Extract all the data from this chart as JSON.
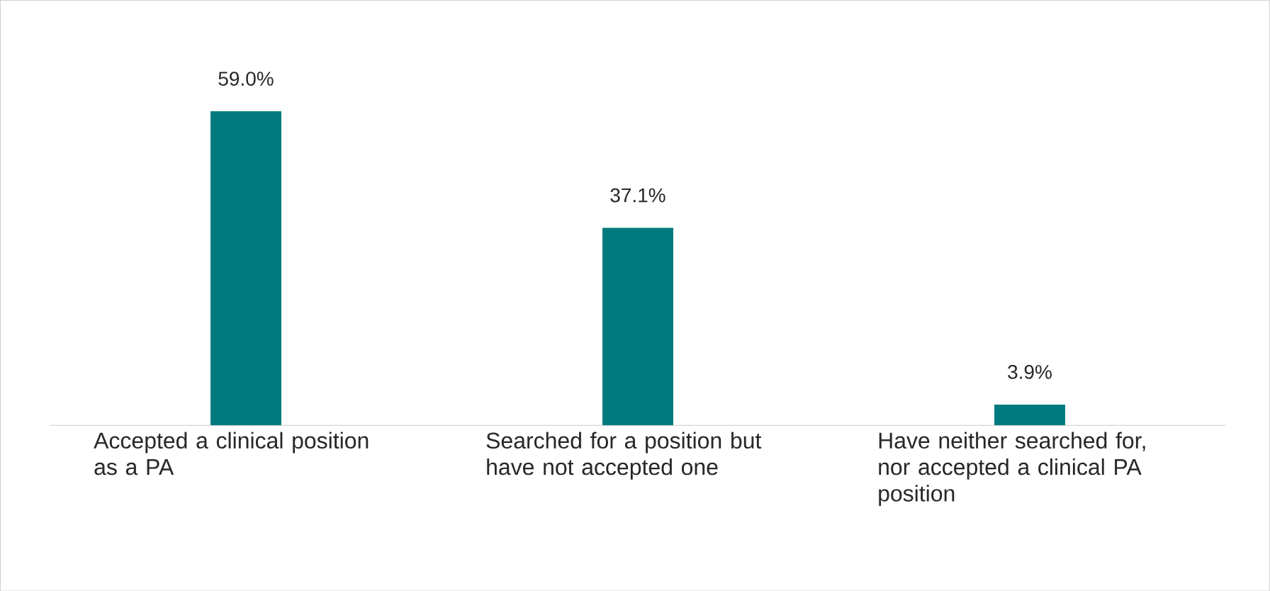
{
  "chart_data": {
    "type": "bar",
    "categories": [
      "Accepted a clinical position as a PA",
      "Searched for a position but have not accepted one",
      "Have neither searched for, nor accepted a clinical PA position"
    ],
    "values": [
      59.0,
      37.1,
      3.9
    ],
    "value_labels": [
      "59.0%",
      "37.1%",
      "3.9%"
    ],
    "color": "#007a7e"
  }
}
